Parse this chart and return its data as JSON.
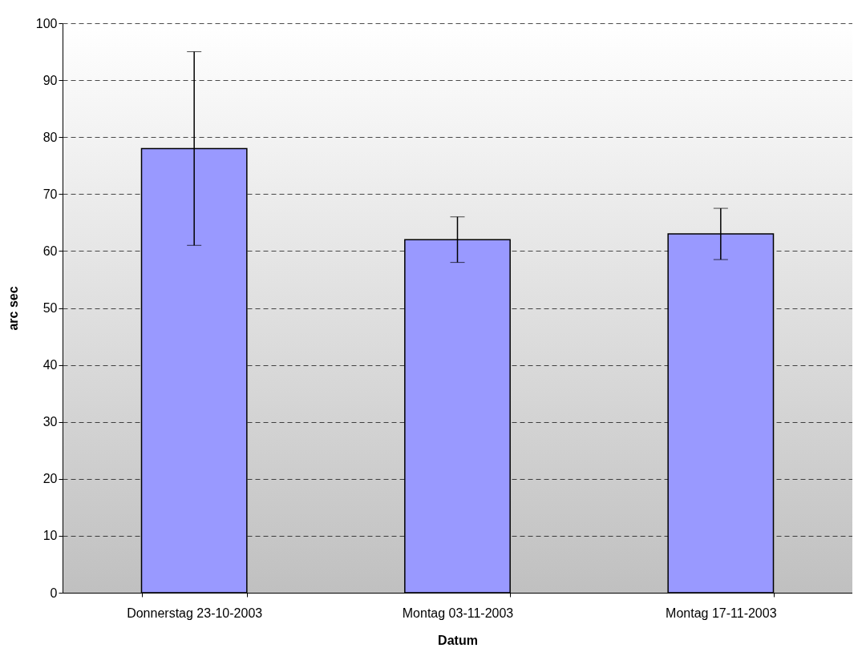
{
  "chart_data": {
    "type": "bar",
    "xlabel": "Datum",
    "ylabel": "arc sec",
    "categories": [
      "Donnerstag 23-10-2003",
      "Montag 03-11-2003",
      "Montag 17-11-2003"
    ],
    "values": [
      78,
      62,
      63
    ],
    "errors": [
      17,
      4,
      4.5
    ],
    "color": "#9999ff",
    "ylim": [
      0,
      100
    ],
    "yticks": [
      0,
      10,
      20,
      30,
      40,
      50,
      60,
      70,
      80,
      90,
      100
    ],
    "grid": "y"
  }
}
